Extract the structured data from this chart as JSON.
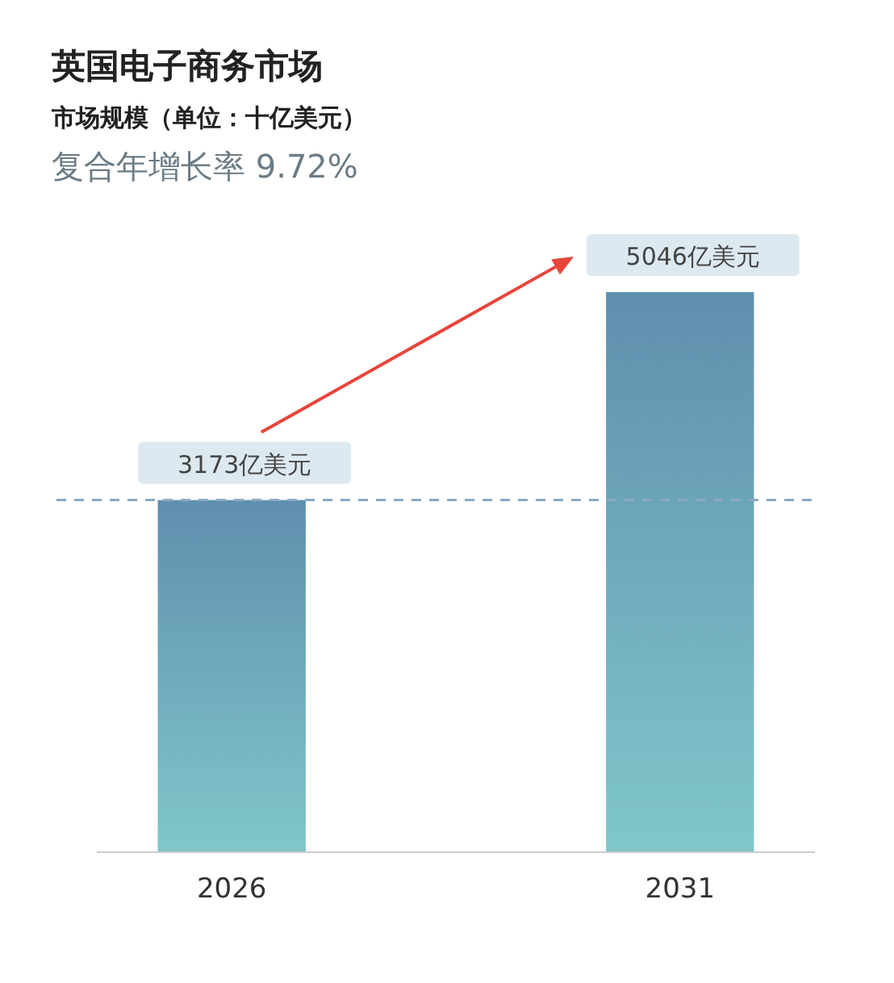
{
  "chart_data": {
    "type": "bar",
    "title": "英国电子商务市场",
    "subtitle": "市场规模（单位：十亿美元）",
    "annotations": [
      "复合年增长率 9.72%"
    ],
    "categories": [
      "2026",
      "2031"
    ],
    "series": [
      {
        "color": "#6a9fc2",
        "values": [
          3173,
          5046
        ],
        "value_labels": [
          "3173亿美元",
          "5046亿美元"
        ]
      }
    ],
    "ref_lines": [
      {
        "axis": "y",
        "value": 3173,
        "color": "#8aaac4",
        "line_style": "dashed"
      }
    ]
  }
}
